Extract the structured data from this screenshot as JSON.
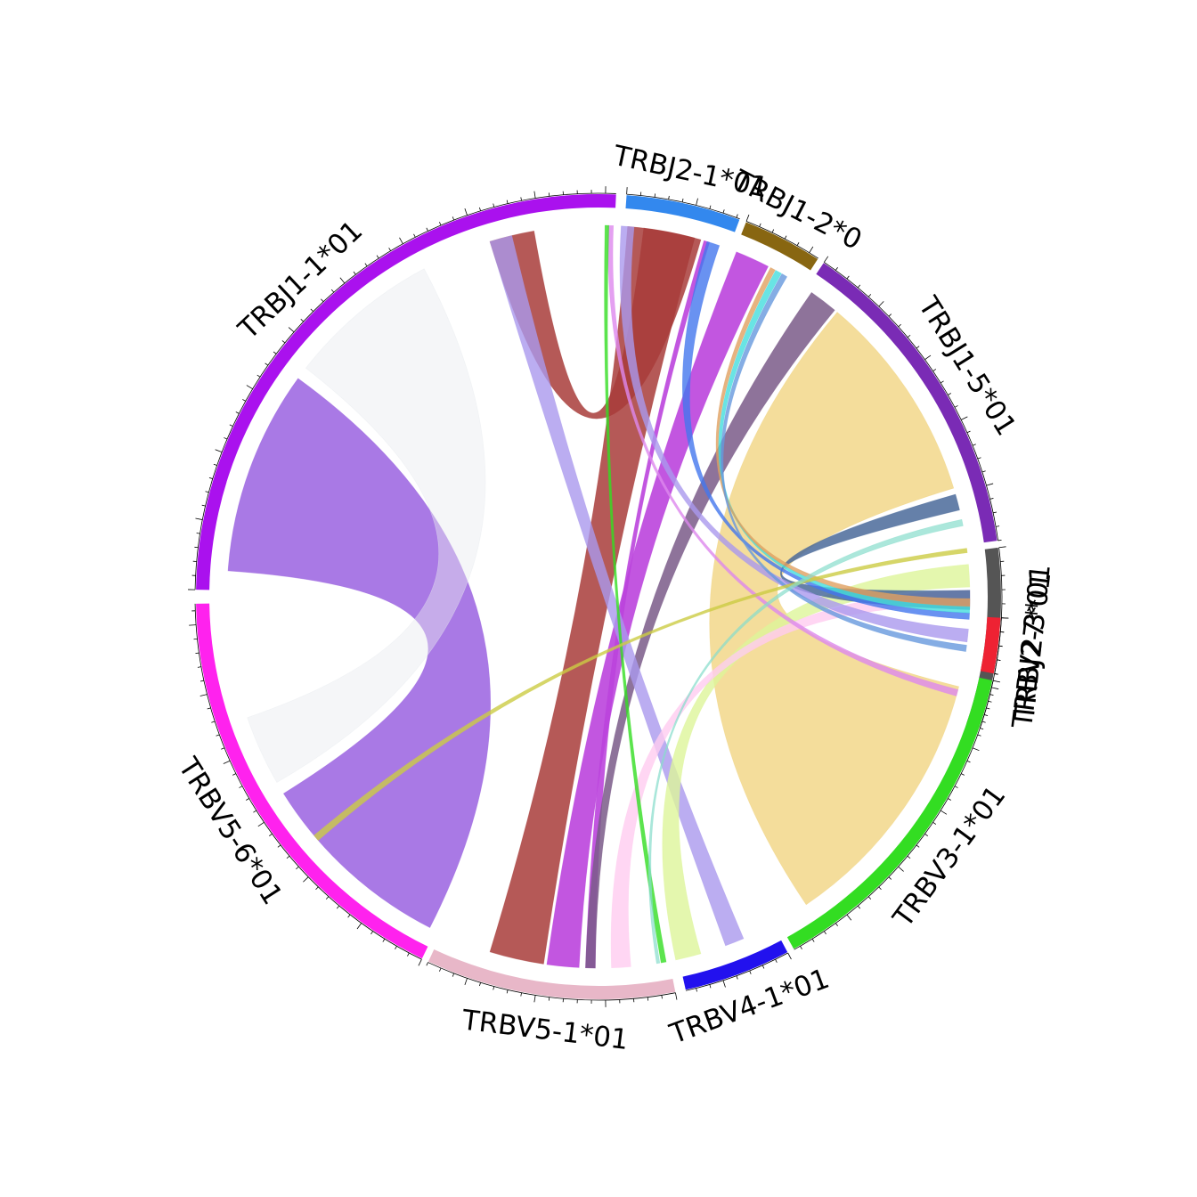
{
  "chart_data": {
    "type": "chord",
    "segments": [
      {
        "id": "trbj1-1",
        "label": "TRBJ1-1*01",
        "color": "#aa11ee",
        "start": 181,
        "end": 272.5
      },
      {
        "id": "trbj2-1",
        "label": "TRBJ2-1*01",
        "color": "#3388ee",
        "start": 274,
        "end": 290.5
      },
      {
        "id": "trbj1-2",
        "label": "TRBJ1-2*0",
        "color": "#886611",
        "start": 291.5,
        "end": 303
      },
      {
        "id": "trbj1-5",
        "label": "TRBJ1-5*01",
        "color": "#7a2bb5",
        "start": 304,
        "end": 352
      },
      {
        "id": "trbj2-3",
        "label": "TRBJ2-3*01",
        "color": "#555555",
        "start": 353,
        "end": 379
      },
      {
        "id": "trbv27",
        "label": "TRBV27*01",
        "color": "#ee2233",
        "start": 3,
        "end": 11
      },
      {
        "id": "trbv3-1",
        "label": "TRBV3-1*01",
        "color": "#33dd22",
        "start": 12,
        "end": 61
      },
      {
        "id": "trbv4-1",
        "label": "TRBV4-1*01",
        "color": "#2211ee",
        "start": 62,
        "end": 77.5
      },
      {
        "id": "trbv5-1",
        "label": "TRBV5-1*01",
        "color": "#e8b7c8",
        "start": 79,
        "end": 115
      },
      {
        "id": "trbv5-6",
        "label": "TRBV5-6*01",
        "color": "#ff22ee",
        "start": 116,
        "end": 179
      }
    ],
    "links": [
      {
        "from": [
          184,
          216
        ],
        "to": [
          117,
          148
        ],
        "color": "#9a62e0",
        "opacity": 0.85
      },
      {
        "from": [
          218,
          242
        ],
        "to": [
          150,
          161
        ],
        "color": "#e8ecf0",
        "opacity": 0.45
      },
      {
        "from": [
          277,
          286
        ],
        "to": [
          253,
          260
        ],
        "color": "#a83c3a",
        "opacity": 0.85
      },
      {
        "from": [
          274.5,
          285
        ],
        "to": [
          98.5,
          107
        ],
        "color": "#a83c3a",
        "opacity": 0.85
      },
      {
        "from": [
          291.8,
          297.2
        ],
        "to": [
          93,
          98
        ],
        "color": "#bb44dd",
        "opacity": 0.9
      },
      {
        "from": [
          286.5,
          287.4
        ],
        "to": [
          90.5,
          92
        ],
        "color": "#bb44dd",
        "opacity": 0.9
      },
      {
        "from": [
          305,
          309.5
        ],
        "to": [
          90.5,
          92
        ],
        "color": "#7a5a88",
        "opacity": 0.85
      },
      {
        "from": [
          310,
          343
        ],
        "to": [
          14,
          56
        ],
        "color": "#f0d27a",
        "opacity": 0.75
      },
      {
        "from": [
          253,
          256.5
        ],
        "to": [
          67,
          70
        ],
        "color": "#aa99ee",
        "opacity": 0.8
      },
      {
        "from": [
          355,
          358.5
        ],
        "to": [
          74,
          78
        ],
        "color": "#ddf59a",
        "opacity": 0.8
      },
      {
        "from": [
          359,
          361.5
        ],
        "to": [
          85,
          88
        ],
        "color": "#ffccf0",
        "opacity": 0.8
      },
      {
        "from": [
          344,
          346.5
        ],
        "to": [
          359,
          2
        ],
        "color": "#4a6a9a",
        "opacity": 0.85
      },
      {
        "from": [
          5,
          7
        ],
        "to": [
          273.5,
          275.5
        ],
        "color": "#aa99ee",
        "opacity": 0.8
      },
      {
        "from": [
          2.5,
          3.5
        ],
        "to": [
          287,
          289
        ],
        "color": "#4477ee",
        "opacity": 0.8
      },
      {
        "from": [
          1.5,
          2.5
        ],
        "to": [
          298.5,
          299.5
        ],
        "color": "#44dddd",
        "opacity": 0.8
      },
      {
        "from": [
          0.3,
          1.5
        ],
        "to": [
          297.6,
          298.4
        ],
        "color": "#e0a060",
        "opacity": 0.8
      },
      {
        "from": [
          7.5,
          8.5
        ],
        "to": [
          299.6,
          300.5
        ],
        "color": "#6699dd",
        "opacity": 0.8
      },
      {
        "from": [
          271.5,
          272.3
        ],
        "to": [
          14.5,
          15.5
        ],
        "color": "#dd88ee",
        "opacity": 0.8
      },
      {
        "from": [
          271,
          271.6
        ],
        "to": [
          79.5,
          80.3
        ],
        "color": "#33dd22",
        "opacity": 0.8
      },
      {
        "from": [
          352.5,
          353.2
        ],
        "to": [
          139,
          140
        ],
        "color": "#cccc44",
        "opacity": 0.8
      },
      {
        "from": [
          348,
          349
        ],
        "to": [
          80.5,
          81
        ],
        "color": "#88ddcc",
        "opacity": 0.7
      }
    ]
  }
}
